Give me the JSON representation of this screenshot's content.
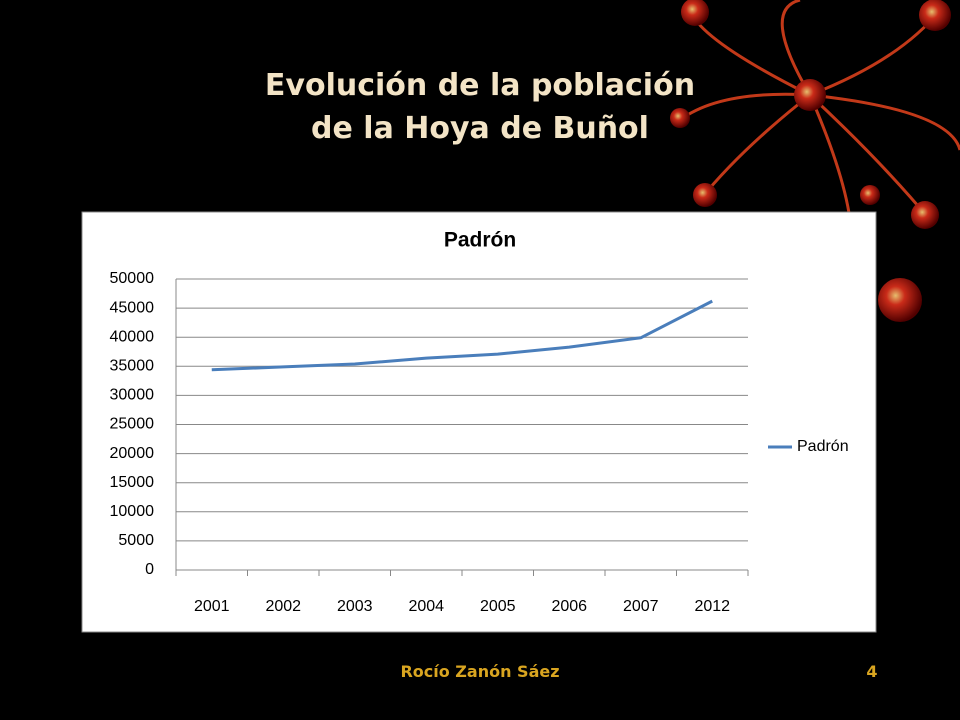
{
  "slide": {
    "title": [
      "Evolución de la población",
      "de la Hoya de Buñol"
    ],
    "footer": "Rocío Zanón Sáez",
    "page_number": 4
  },
  "chart_data": {
    "type": "line",
    "title": "Padrón",
    "categories": [
      "2001",
      "2002",
      "2003",
      "2004",
      "2005",
      "2006",
      "2007",
      "2012"
    ],
    "series": [
      {
        "name": "Padrón",
        "color": "#4a7ebb",
        "values": [
          34400,
          34900,
          35400,
          36400,
          37100,
          38300,
          39900,
          46200
        ]
      }
    ],
    "ylim": [
      0,
      50000
    ],
    "yticks": [
      0,
      5000,
      10000,
      15000,
      20000,
      25000,
      30000,
      35000,
      40000,
      45000,
      50000
    ],
    "grid": true,
    "legend": "right"
  }
}
